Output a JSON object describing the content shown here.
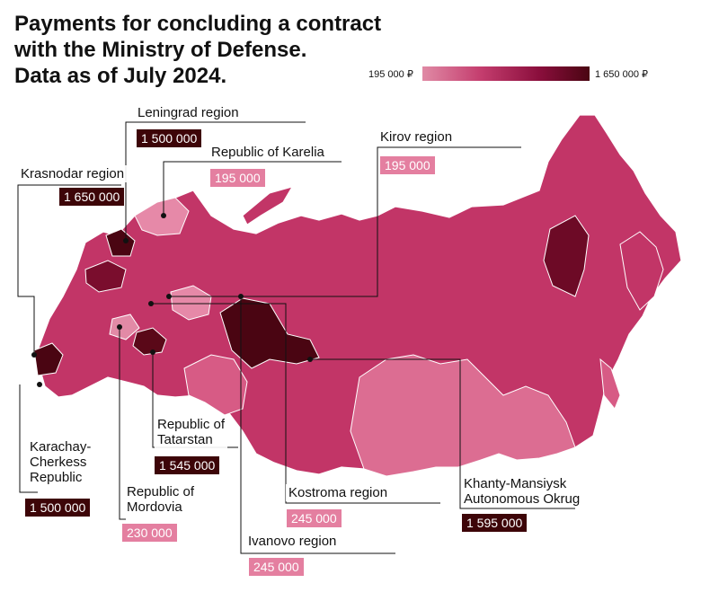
{
  "title": "Payments for concluding a contract\nwith the Ministry of Defense.\nData as of July 2024.",
  "legend": {
    "min_label": "195 000 ₽",
    "max_label": "1 650 000 ₽",
    "min_color": "#e08aa5",
    "max_color": "#4a0512"
  },
  "regions": [
    {
      "name": "Leningrad region",
      "value": "1 500 000",
      "tier": "dark"
    },
    {
      "name": "Republic of Karelia",
      "value": "195 000",
      "tier": "light"
    },
    {
      "name": "Kirov region",
      "value": "195 000",
      "tier": "light"
    },
    {
      "name": "Krasnodar region",
      "value": "1 650 000",
      "tier": "dark"
    },
    {
      "name": "Republic of\nTatarstan",
      "value": "1 545 000",
      "tier": "dark"
    },
    {
      "name": "Karachay-\nCherkess\nRepublic",
      "value": "1 500 000",
      "tier": "dark"
    },
    {
      "name": "Republic of\nMordovia",
      "value": "230 000",
      "tier": "light"
    },
    {
      "name": "Kostroma region",
      "value": "245 000",
      "tier": "light"
    },
    {
      "name": "Khanty-Mansiysk\nAutonomous Okrug",
      "value": "1 595 000",
      "tier": "dark"
    },
    {
      "name": "Ivanovo region",
      "value": "245 000",
      "tier": "light"
    }
  ]
}
